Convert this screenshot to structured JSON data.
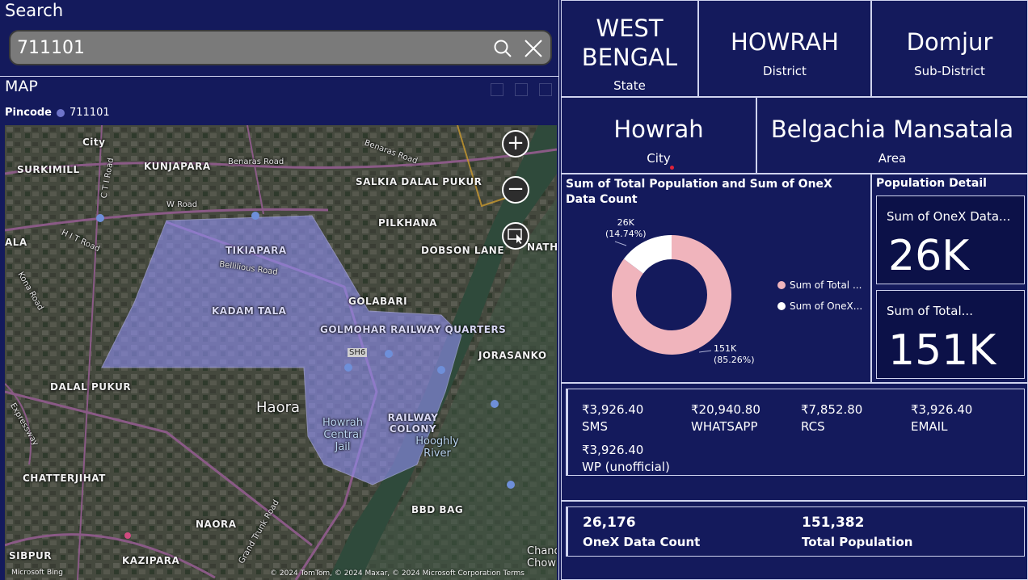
{
  "search": {
    "title": "Search",
    "value": "711101"
  },
  "map": {
    "title": "MAP",
    "legend_label": "Pincode",
    "legend_value": "711101",
    "legend_color": "#6e74c9",
    "labels": {
      "surkimill": "SURKIMILL",
      "kunjapara": "KUNJAPARA",
      "salkia": "SALKIA DALAL PUKUR",
      "pilkhana": "PILKHANA",
      "dobson": "DOBSON LANE",
      "nathe": "NATHE",
      "tikiapara": "TIKIAPARA",
      "bellilious": "Bellilious Road",
      "kadam_tala": "KADAM TALA",
      "golabari": "GOLABARI",
      "golmohar": "GOLMOHAR RAILWAY QUARTERS",
      "jorasanko": "JORASANKO",
      "dalal_pukur": "DALAL PUKUR",
      "haora": "Haora",
      "howrah_jail": "Howrah Central Jail",
      "railway_colony": "RAILWAY COLONY",
      "hooghly": "Hooghly River",
      "chatterjihat": "CHATTERJIHAT",
      "naora": "NAORA",
      "bbd_bag": "BBD BAG",
      "sibpur": "SIBPUR",
      "kazipara": "KAZIPARA",
      "ala": "ALA",
      "chand": "Chand Chow",
      "benaras_road": "Benaras Road",
      "w_road": "W Road",
      "hit_road": "H I T Road",
      "kona_road": "Kona Road",
      "cti_road": "C T I Road",
      "grand_trunk": "Grand Trunk Road",
      "expressway": "Expressway",
      "city": "City",
      "sh6": "SH6"
    },
    "zoom_in": "+",
    "zoom_out": "−",
    "attribution": "© 2024 TomTom, © 2024 Maxar, © 2024 Microsoft Corporation  Terms",
    "bing": "Microsoft Bing"
  },
  "cards": {
    "state": {
      "value_line1": "WEST",
      "value_line2": "BENGAL",
      "label": "State"
    },
    "district": {
      "value": "HOWRAH",
      "label": "District"
    },
    "subdistrict": {
      "value": "Domjur",
      "label": "Sub-District"
    },
    "city": {
      "value": "Howrah",
      "label": "City"
    },
    "area": {
      "value": "Belgachia Mansatala",
      "label": "Area"
    }
  },
  "chart_data": {
    "type": "pie",
    "title": "Sum of Total Population and Sum of OneX Data Count",
    "categories": [
      "Sum of Total ...",
      "Sum of OneX..."
    ],
    "values": [
      151382,
      26176
    ],
    "data_labels": [
      {
        "value": "151K",
        "percent": "(85.26%)"
      },
      {
        "value": "26K",
        "percent": "(14.74%)"
      }
    ],
    "colors": [
      "#f0b4bc",
      "#ffffff"
    ],
    "legend_position": "right"
  },
  "population_detail": {
    "title": "Population Detail",
    "onex_label": "Sum of OneX Data...",
    "onex_value": "26K",
    "total_label": "Sum of Total...",
    "total_value": "151K"
  },
  "channels": [
    {
      "amount": "₹3,926.40",
      "name": "SMS"
    },
    {
      "amount": "₹20,940.80",
      "name": "WHATSAPP"
    },
    {
      "amount": "₹7,852.80",
      "name": "RCS"
    },
    {
      "amount": "₹3,926.40",
      "name": "EMAIL"
    },
    {
      "amount": "₹3,926.40",
      "name": "WP (unofficial)"
    }
  ],
  "totals": {
    "onex_value": "26,176",
    "onex_label": "OneX Data Count",
    "population_value": "151,382",
    "population_label": "Total Population"
  }
}
